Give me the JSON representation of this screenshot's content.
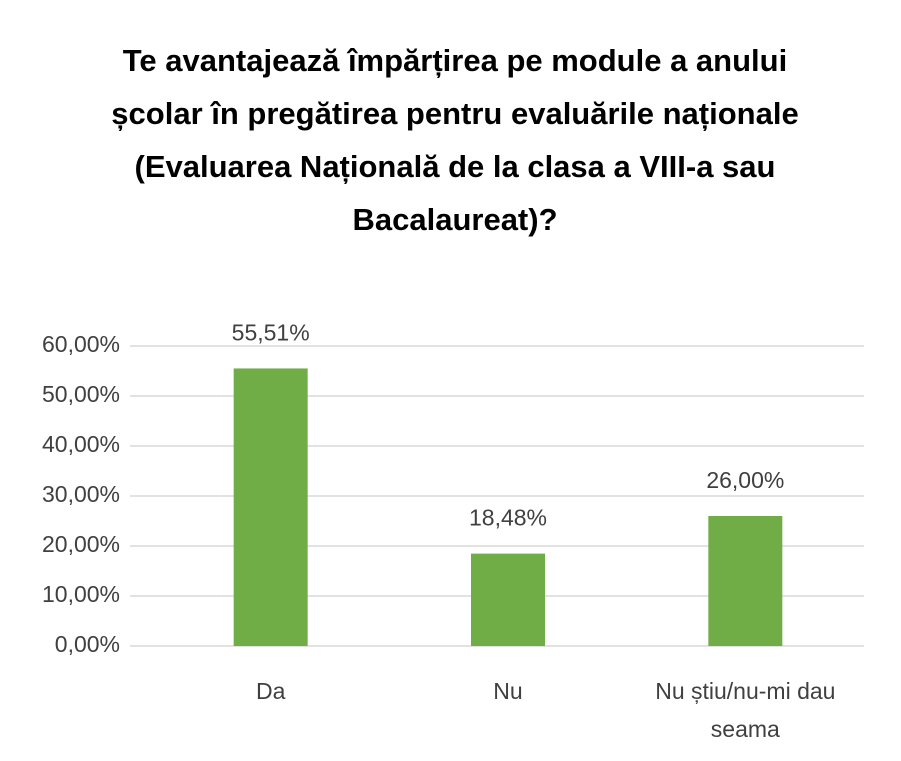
{
  "chart_data": {
    "type": "bar",
    "title": "Te avantajează împărțirea pe module a anului școlar în pregătirea pentru evaluările naționale (Evaluarea Națională de la clasa a VIII-a sau Bacalaureat)?",
    "categories": [
      "Da",
      "Nu",
      "Nu știu/nu-mi dau seama"
    ],
    "values": [
      55.51,
      18.48,
      26.0
    ],
    "value_labels": [
      "55,51%",
      "18,48%",
      "26,00%"
    ],
    "color": "#70ad47",
    "ylim": [
      0,
      60
    ],
    "yticks": [
      {
        "value": 0,
        "label": "0,00%"
      },
      {
        "value": 10,
        "label": "10,00%"
      },
      {
        "value": 20,
        "label": "20,00%"
      },
      {
        "value": 30,
        "label": "30,00%"
      },
      {
        "value": 40,
        "label": "40,00%"
      },
      {
        "value": 50,
        "label": "50,00%"
      },
      {
        "value": 60,
        "label": "60,00%"
      }
    ],
    "grid": true
  }
}
